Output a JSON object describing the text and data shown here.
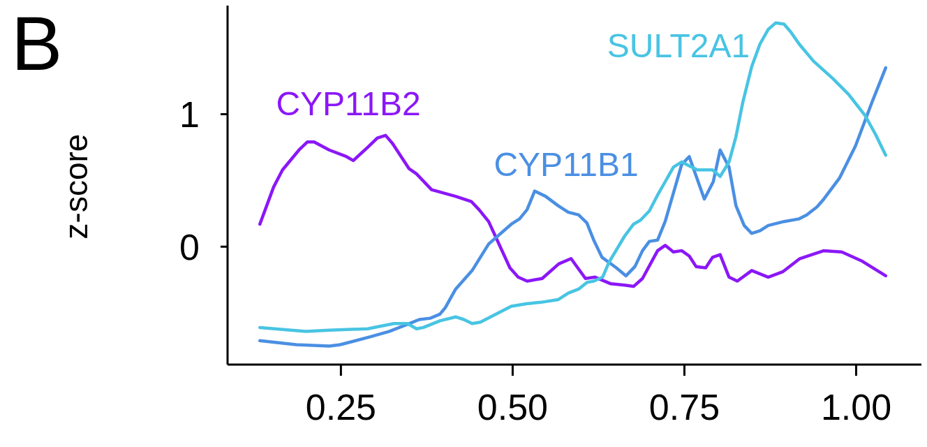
{
  "chart_data": {
    "type": "line",
    "ylabel": "z-score",
    "annotations": [
      "B"
    ],
    "xlim": [
      0.085,
      1.095
    ],
    "ylim": [
      -0.89,
      1.82
    ],
    "xticks": [
      {
        "value": 0.25,
        "label": "0.25"
      },
      {
        "value": 0.5,
        "label": "0.50"
      },
      {
        "value": 0.75,
        "label": "0.75"
      },
      {
        "value": 1.0,
        "label": "1.00"
      }
    ],
    "yticks": [
      0,
      1
    ],
    "grid": false,
    "legend": false,
    "marker": "none",
    "line_style": "solid",
    "series": [
      {
        "name": "CYP11B2",
        "color": "#8b17f7",
        "x": [
          0.132,
          0.152,
          0.165,
          0.189,
          0.201,
          0.211,
          0.233,
          0.258,
          0.268,
          0.289,
          0.303,
          0.315,
          0.325,
          0.349,
          0.36,
          0.382,
          0.417,
          0.44,
          0.451,
          0.465,
          0.496,
          0.508,
          0.521,
          0.543,
          0.567,
          0.585,
          0.606,
          0.62,
          0.643,
          0.663,
          0.676,
          0.689,
          0.711,
          0.722,
          0.734,
          0.746,
          0.757,
          0.767,
          0.781,
          0.791,
          0.802,
          0.815,
          0.827,
          0.848,
          0.872,
          0.893,
          0.918,
          0.953,
          0.979,
          1.009,
          1.043
        ],
        "values": [
          0.17,
          0.45,
          0.58,
          0.73,
          0.79,
          0.79,
          0.73,
          0.68,
          0.65,
          0.75,
          0.82,
          0.84,
          0.78,
          0.59,
          0.55,
          0.43,
          0.38,
          0.34,
          0.28,
          0.19,
          -0.16,
          -0.23,
          -0.26,
          -0.24,
          -0.13,
          -0.09,
          -0.24,
          -0.23,
          -0.28,
          -0.29,
          -0.3,
          -0.24,
          -0.03,
          0.01,
          -0.04,
          -0.03,
          -0.07,
          -0.15,
          -0.16,
          -0.08,
          -0.06,
          -0.23,
          -0.26,
          -0.18,
          -0.23,
          -0.19,
          -0.09,
          -0.03,
          -0.04,
          -0.11,
          -0.22
        ]
      },
      {
        "name": "CYP11B1",
        "color": "#4a8fe3",
        "x": [
          0.132,
          0.185,
          0.233,
          0.249,
          0.293,
          0.32,
          0.35,
          0.364,
          0.38,
          0.394,
          0.402,
          0.417,
          0.441,
          0.465,
          0.498,
          0.51,
          0.521,
          0.532,
          0.548,
          0.566,
          0.581,
          0.596,
          0.608,
          0.618,
          0.63,
          0.651,
          0.665,
          0.678,
          0.689,
          0.699,
          0.711,
          0.722,
          0.746,
          0.757,
          0.779,
          0.792,
          0.802,
          0.815,
          0.825,
          0.837,
          0.848,
          0.86,
          0.872,
          0.895,
          0.917,
          0.928,
          0.943,
          0.953,
          0.976,
          0.999,
          1.023,
          1.043
        ],
        "values": [
          -0.71,
          -0.74,
          -0.75,
          -0.74,
          -0.68,
          -0.64,
          -0.58,
          -0.55,
          -0.54,
          -0.51,
          -0.46,
          -0.32,
          -0.18,
          0.02,
          0.17,
          0.21,
          0.28,
          0.42,
          0.38,
          0.31,
          0.26,
          0.24,
          0.18,
          0.05,
          -0.08,
          -0.16,
          -0.22,
          -0.15,
          -0.03,
          0.04,
          0.05,
          0.19,
          0.62,
          0.68,
          0.36,
          0.49,
          0.73,
          0.6,
          0.31,
          0.16,
          0.1,
          0.12,
          0.16,
          0.19,
          0.21,
          0.24,
          0.3,
          0.36,
          0.52,
          0.76,
          1.09,
          1.35
        ]
      },
      {
        "name": "SULT2A1",
        "color": "#48c4e3",
        "x": [
          0.132,
          0.199,
          0.233,
          0.289,
          0.327,
          0.347,
          0.36,
          0.37,
          0.394,
          0.417,
          0.429,
          0.441,
          0.453,
          0.498,
          0.521,
          0.541,
          0.566,
          0.581,
          0.596,
          0.608,
          0.618,
          0.631,
          0.64,
          0.663,
          0.676,
          0.686,
          0.699,
          0.711,
          0.722,
          0.734,
          0.746,
          0.757,
          0.769,
          0.791,
          0.802,
          0.815,
          0.825,
          0.835,
          0.848,
          0.86,
          0.872,
          0.883,
          0.895,
          0.905,
          0.917,
          0.938,
          0.966,
          0.989,
          1.013,
          1.028,
          1.043
        ],
        "values": [
          -0.61,
          -0.64,
          -0.63,
          -0.62,
          -0.58,
          -0.58,
          -0.62,
          -0.61,
          -0.56,
          -0.53,
          -0.55,
          -0.58,
          -0.57,
          -0.45,
          -0.43,
          -0.42,
          -0.4,
          -0.35,
          -0.32,
          -0.27,
          -0.26,
          -0.23,
          -0.12,
          0.08,
          0.17,
          0.2,
          0.27,
          0.39,
          0.49,
          0.6,
          0.64,
          0.61,
          0.58,
          0.58,
          0.53,
          0.64,
          0.83,
          1.09,
          1.36,
          1.53,
          1.64,
          1.69,
          1.68,
          1.62,
          1.53,
          1.4,
          1.27,
          1.15,
          0.99,
          0.85,
          0.69
        ]
      }
    ]
  }
}
